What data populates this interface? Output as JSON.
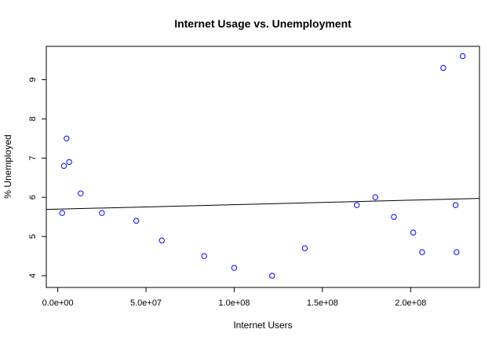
{
  "chart_data": {
    "type": "scatter",
    "title": "Internet Usage vs. Unemployment",
    "xlabel": "Internet Users",
    "ylabel": "% Unemployed",
    "xlim": [
      -6500000,
      239000000
    ],
    "ylim": [
      3.7,
      9.85
    ],
    "x_ticks": [
      {
        "value": 0,
        "label": "0.0e+00"
      },
      {
        "value": 50000000,
        "label": "5.0e+07"
      },
      {
        "value": 100000000,
        "label": "1.0e+08"
      },
      {
        "value": 150000000,
        "label": "1.5e+08"
      },
      {
        "value": 200000000,
        "label": "2.0e+08"
      }
    ],
    "y_ticks": [
      {
        "value": 4,
        "label": "4"
      },
      {
        "value": 5,
        "label": "5"
      },
      {
        "value": 6,
        "label": "6"
      },
      {
        "value": 7,
        "label": "7"
      },
      {
        "value": 8,
        "label": "8"
      },
      {
        "value": 9,
        "label": "9"
      }
    ],
    "grid": false,
    "point_color": "#0000ff",
    "line_color": "#000000",
    "points": [
      {
        "x": 2500000,
        "y": 5.6
      },
      {
        "x": 3500000,
        "y": 6.8
      },
      {
        "x": 5000000,
        "y": 7.5
      },
      {
        "x": 6500000,
        "y": 6.9
      },
      {
        "x": 13000000,
        "y": 6.1
      },
      {
        "x": 25000000,
        "y": 5.6
      },
      {
        "x": 44500000,
        "y": 5.4
      },
      {
        "x": 59000000,
        "y": 4.9
      },
      {
        "x": 83000000,
        "y": 4.5
      },
      {
        "x": 100000000,
        "y": 4.2
      },
      {
        "x": 121500000,
        "y": 4.0
      },
      {
        "x": 140000000,
        "y": 4.7
      },
      {
        "x": 169500000,
        "y": 5.8
      },
      {
        "x": 180000000,
        "y": 6.0
      },
      {
        "x": 190500000,
        "y": 5.5
      },
      {
        "x": 201500000,
        "y": 5.1
      },
      {
        "x": 206500000,
        "y": 4.6
      },
      {
        "x": 218500000,
        "y": 9.3
      },
      {
        "x": 225500000,
        "y": 5.8
      },
      {
        "x": 226000000,
        "y": 4.6
      },
      {
        "x": 229500000,
        "y": 9.6
      }
    ],
    "fit_line": {
      "x": [
        -6500000,
        239000000
      ],
      "y": [
        5.69,
        5.97
      ]
    }
  }
}
